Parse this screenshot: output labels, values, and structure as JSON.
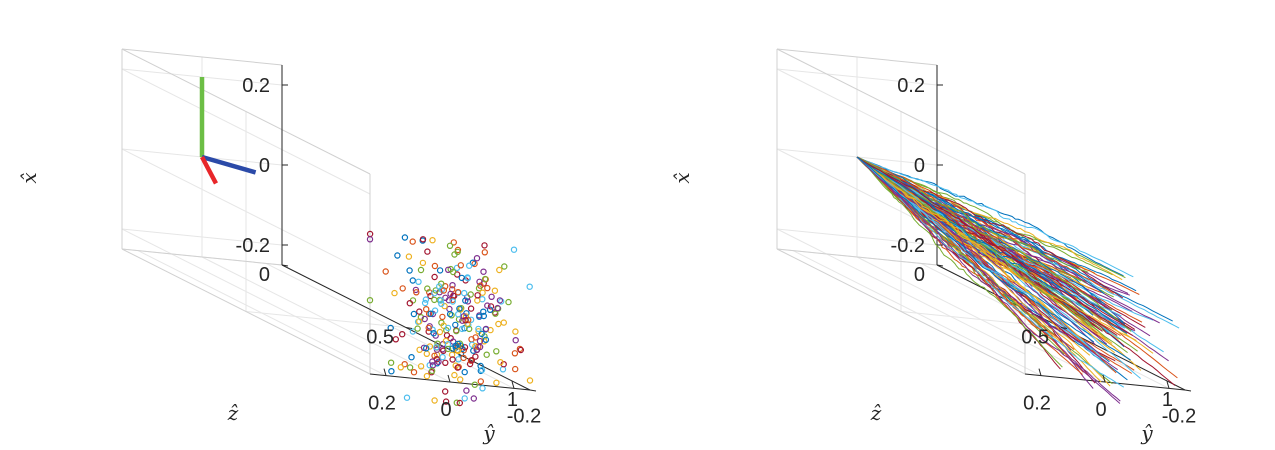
{
  "chart_data": [
    {
      "type": "scatter",
      "subtype": "3d-scatter",
      "xlabel": "x̂",
      "ylabel": "ŷ",
      "zlabel": "ẑ",
      "x_ticks": [
        "0.2",
        "0",
        "-0.2"
      ],
      "y_ticks": [
        "0.2",
        "0",
        "-0.2"
      ],
      "z_ticks": [
        "0",
        "0.5",
        "1"
      ],
      "xlim": [
        -0.25,
        0.25
      ],
      "ylim": [
        -0.25,
        0.25
      ],
      "zlim": [
        0,
        1
      ],
      "grid": true,
      "frame_axes": [
        {
          "name": "x",
          "color": "#6cbe45",
          "to": [
            0.2,
            0,
            0
          ]
        },
        {
          "name": "y",
          "color": "#2b4aa8",
          "to": [
            0,
            -0.09,
            0.1
          ]
        },
        {
          "name": "z",
          "color": "#e8262a",
          "to": [
            0,
            0.15,
            0.25
          ]
        }
      ],
      "points": {
        "count": 280,
        "marker": "open-circle",
        "z": 1.0,
        "x_range": [
          -0.3,
          0.1
        ],
        "y_range": [
          -0.25,
          0.25
        ],
        "colors": [
          "#0072bd",
          "#d95319",
          "#edb120",
          "#7e2f8e",
          "#77ac30",
          "#4dbeee",
          "#a2142f"
        ]
      }
    },
    {
      "type": "line",
      "subtype": "3d-trajectories",
      "xlabel": "x̂",
      "ylabel": "ŷ",
      "zlabel": "ẑ",
      "x_ticks": [
        "0.2",
        "0",
        "-0.2"
      ],
      "y_ticks": [
        "0.2",
        "0",
        "-0.2"
      ],
      "z_ticks": [
        "0",
        "0.5",
        "1"
      ],
      "xlim": [
        -0.25,
        0.25
      ],
      "ylim": [
        -0.25,
        0.25
      ],
      "zlim": [
        0,
        1
      ],
      "grid": true,
      "trajectories": {
        "count": 120,
        "start": [
          0,
          0,
          0
        ],
        "end_z": 1.0,
        "end_x_range": [
          -0.3,
          0.02
        ],
        "end_y_range": [
          -0.25,
          0.25
        ],
        "colors": [
          "#0072bd",
          "#d95319",
          "#edb120",
          "#7e2f8e",
          "#77ac30",
          "#4dbeee",
          "#a2142f"
        ]
      }
    }
  ]
}
